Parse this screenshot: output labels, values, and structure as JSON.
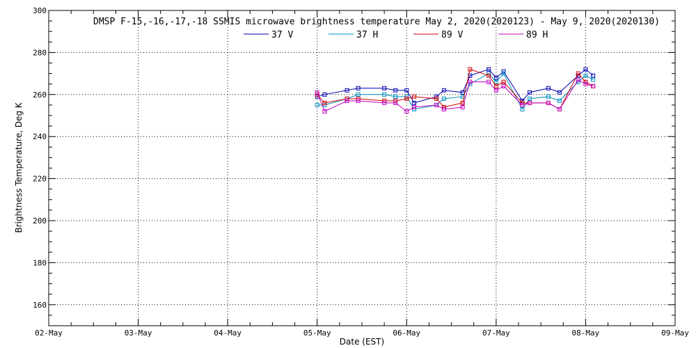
{
  "chart_data": {
    "type": "line",
    "title": "DMSP F-15,-16,-17,-18 SSMIS microwave brightness temperature May  2, 2020(2020123) - May  9, 2020(2020130)",
    "xlabel": "Date (EST)",
    "ylabel": "Brightness Temperature, Deg K",
    "xlim": [
      "2020-05-02T00:00",
      "2020-05-09T00:00"
    ],
    "ylim": [
      150,
      300
    ],
    "x_tick_labels": [
      "02-May",
      "03-May",
      "04-May",
      "05-May",
      "06-May",
      "07-May",
      "08-May",
      "09-May"
    ],
    "y_ticks": [
      160,
      180,
      200,
      220,
      240,
      260,
      280,
      300
    ],
    "grid": true,
    "legend_position": "top-center",
    "x": [
      "2020-05-05T00:00",
      "2020-05-05T02:00",
      "2020-05-05T08:00",
      "2020-05-05T11:00",
      "2020-05-05T18:00",
      "2020-05-05T21:00",
      "2020-05-06T00:00",
      "2020-05-06T02:00",
      "2020-05-06T08:00",
      "2020-05-06T10:00",
      "2020-05-06T15:00",
      "2020-05-06T17:00",
      "2020-05-06T22:00",
      "2020-05-07T00:00",
      "2020-05-07T02:00",
      "2020-05-07T07:00",
      "2020-05-07T09:00",
      "2020-05-07T14:00",
      "2020-05-07T17:00",
      "2020-05-07T22:00",
      "2020-05-08T00:00",
      "2020-05-08T02:00"
    ],
    "series": [
      {
        "name": "37 V",
        "color": "#0000b0",
        "values": [
          259,
          260,
          262,
          263,
          263,
          262,
          262,
          256,
          259,
          262,
          261,
          269,
          272,
          268,
          271,
          257,
          261,
          263,
          261,
          269,
          272,
          269
        ]
      },
      {
        "name": "37 H",
        "color": "#0090c0",
        "values": [
          255,
          255,
          258,
          260,
          260,
          259,
          259,
          253,
          255,
          258,
          259,
          265,
          270,
          266,
          270,
          253,
          258,
          259,
          257,
          266,
          269,
          267
        ]
      },
      {
        "name": "89 V",
        "color": "#d00000",
        "values": [
          260,
          256,
          258,
          258,
          257,
          257,
          258,
          259,
          258,
          254,
          256,
          272,
          269,
          264,
          266,
          256,
          256,
          256,
          253,
          270,
          266,
          264
        ]
      },
      {
        "name": "89 H",
        "color": "#c000c0",
        "values": [
          261,
          252,
          257,
          257,
          256,
          256,
          252,
          254,
          255,
          253,
          254,
          266,
          266,
          262,
          264,
          255,
          256,
          256,
          253,
          267,
          265,
          264
        ]
      }
    ]
  }
}
